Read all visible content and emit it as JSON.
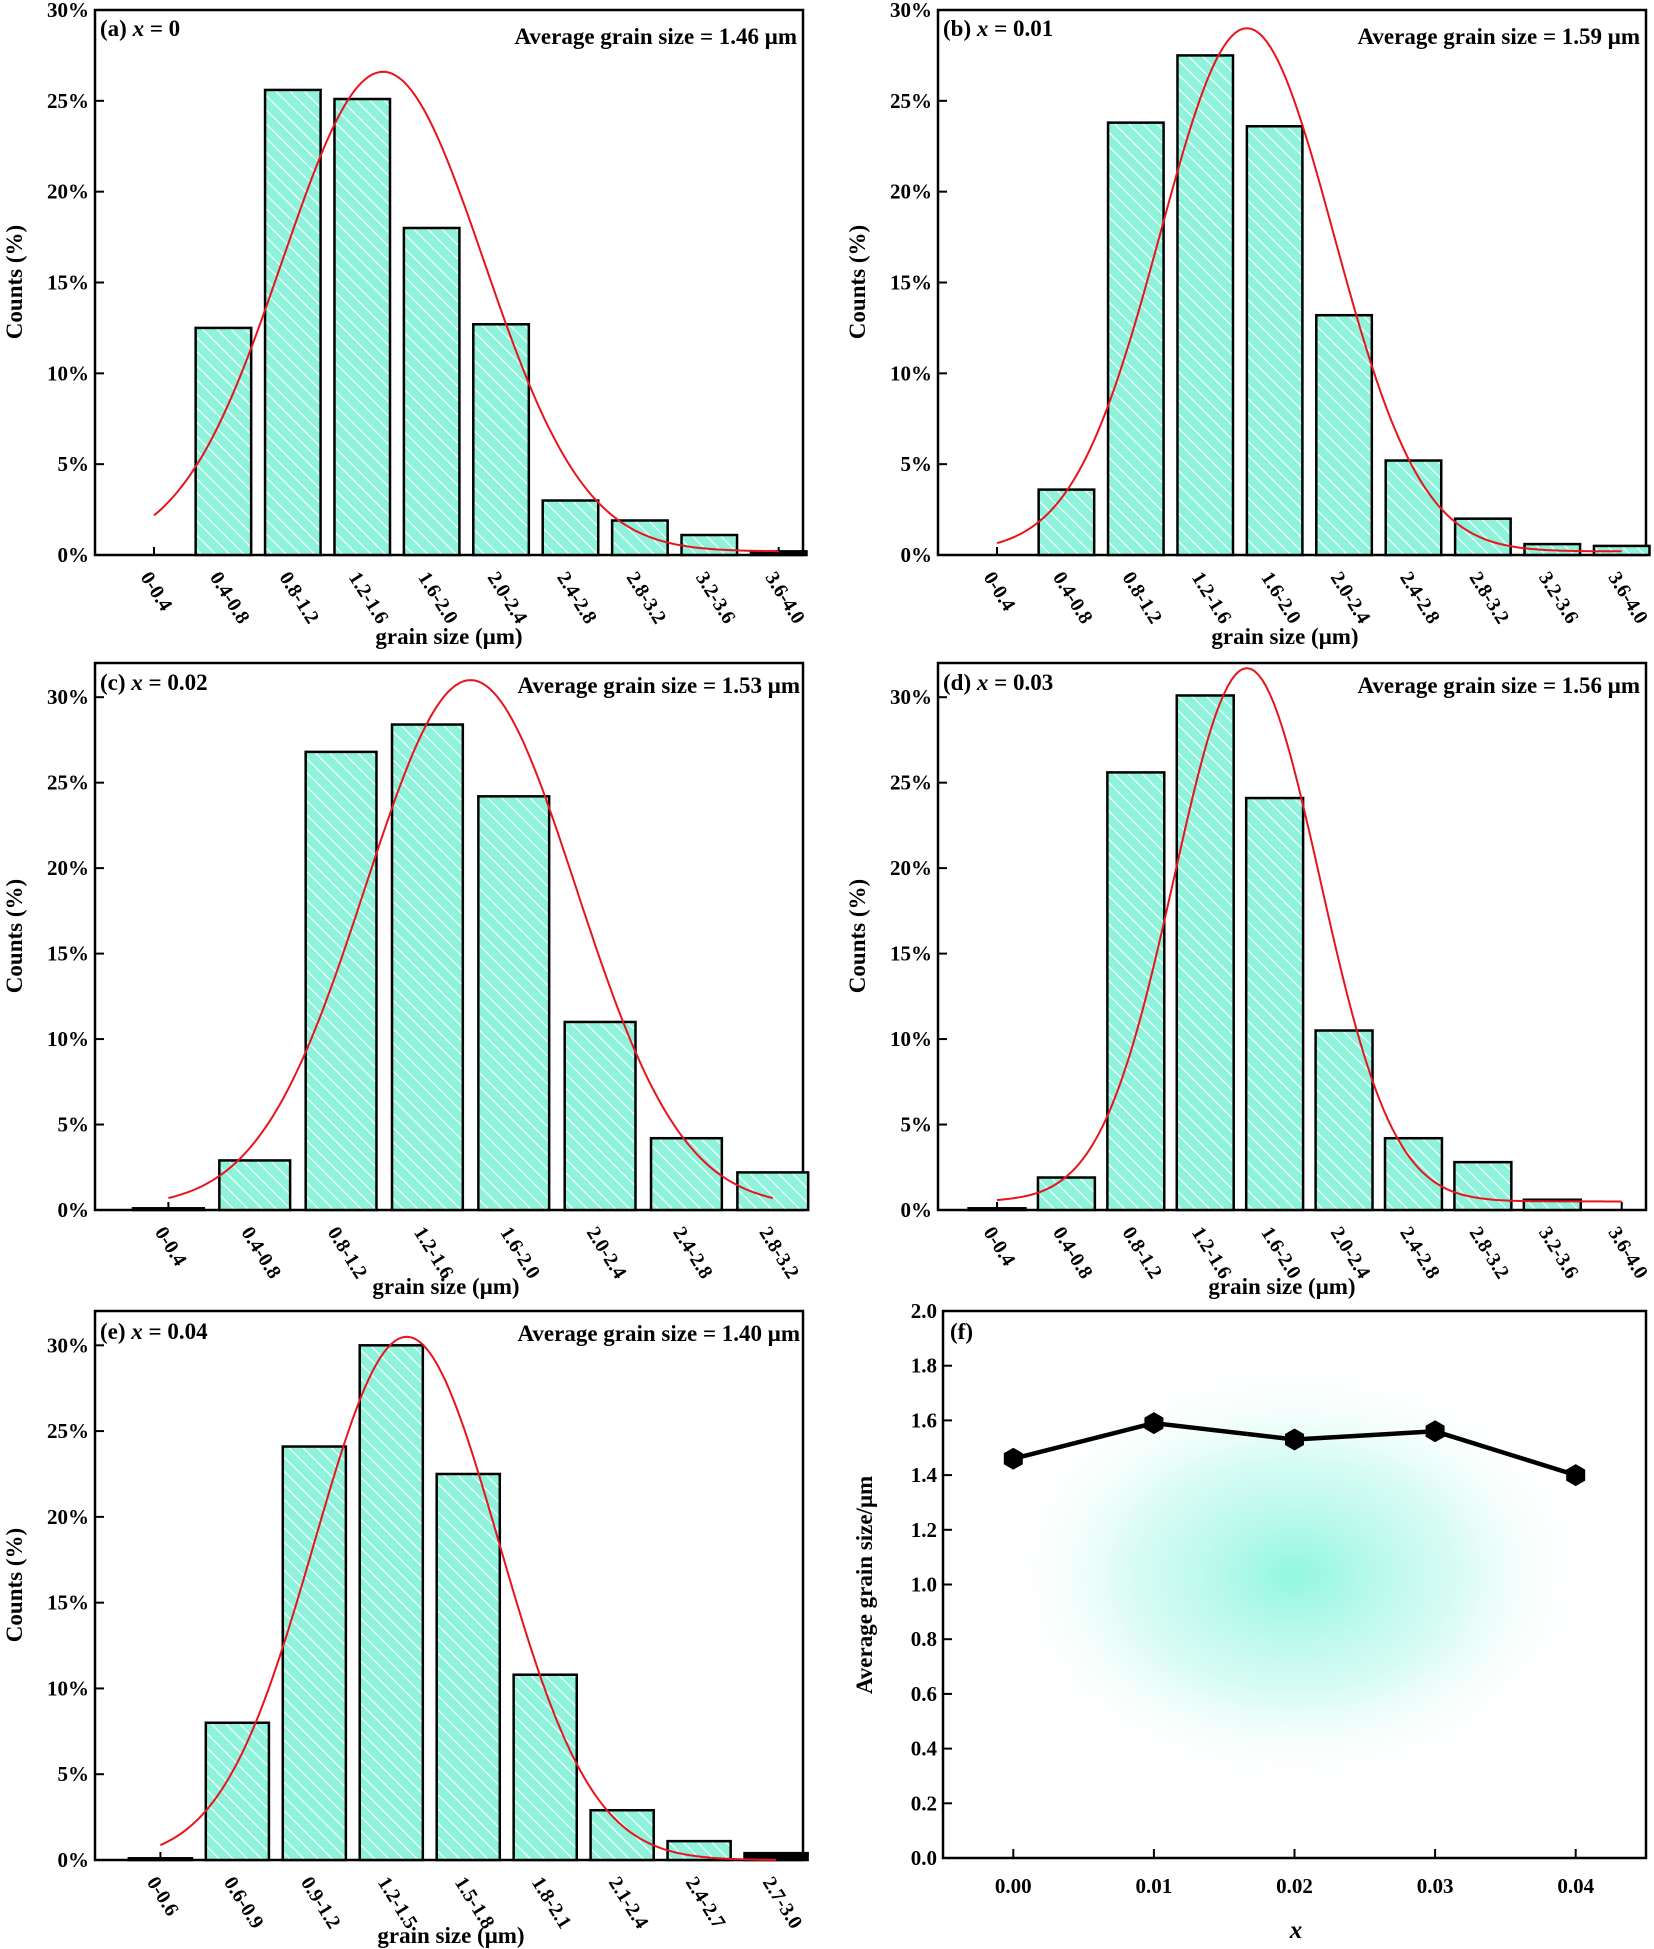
{
  "colors": {
    "bar_fill": "#8ff3dc",
    "hatch": "#ffffff",
    "fit_line": "#e8141c",
    "axis": "#000000",
    "glow": "#7ef5dc"
  },
  "chart_data": [
    {
      "panel": "a",
      "type": "bar",
      "label": "(a)",
      "x_symbol": "x",
      "x_value": "= 0",
      "annotation": "Average grain size = 1.46 μm",
      "xlabel": "grain size (μm)",
      "ylabel": "Counts (%)",
      "categories": [
        "0-0.4",
        "0.4-0.8",
        "0.8-1.2",
        "1.2-1.6",
        "1.6-2.0",
        "2.0-2.4",
        "2.4-2.8",
        "2.8-3.2",
        "3.2-3.6",
        "3.6-4.0"
      ],
      "values": [
        0,
        12.5,
        25.6,
        25.1,
        18.0,
        12.7,
        3.0,
        1.9,
        1.1,
        0.2
      ],
      "ylim": [
        0,
        30
      ],
      "yticks": [
        "0%",
        "5%",
        "10%",
        "15%",
        "20%",
        "25%",
        "30%"
      ],
      "fit": {
        "peak": 26.6,
        "center": 3.3,
        "sigma": 1.45,
        "baseline": 0.2
      }
    },
    {
      "panel": "b",
      "type": "bar",
      "label": "(b)",
      "x_symbol": "x",
      "x_value": "= 0.01",
      "annotation": "Average grain size = 1.59 μm",
      "xlabel": "grain size (μm)",
      "ylabel": "Counts (%)",
      "categories": [
        "0-0.4",
        "0.4-0.8",
        "0.8-1.2",
        "1.2-1.6",
        "1.6-2.0",
        "2.0-2.4",
        "2.4-2.8",
        "2.8-3.2",
        "3.2-3.6",
        "3.6-4.0"
      ],
      "values": [
        0,
        3.6,
        23.8,
        27.5,
        23.6,
        13.2,
        5.2,
        2.0,
        0.6,
        0.5
      ],
      "ylim": [
        0,
        30
      ],
      "yticks": [
        "0%",
        "5%",
        "10%",
        "15%",
        "20%",
        "25%",
        "30%"
      ],
      "fit": {
        "peak": 29.0,
        "center": 3.6,
        "sigma": 1.25,
        "baseline": 0.2
      }
    },
    {
      "panel": "c",
      "type": "bar",
      "label": "(c)",
      "x_symbol": "x",
      "x_value": "= 0.02",
      "annotation": "Average grain size = 1.53 μm",
      "xlabel": "grain size (μm)",
      "ylabel": "Counts (%)",
      "categories": [
        "0-0.4",
        "0.4-0.8",
        "0.8-1.2",
        "1.2-1.6",
        "1.6-2.0",
        "2.0-2.4",
        "2.4-2.8",
        "2.8-3.2"
      ],
      "values": [
        0.1,
        2.9,
        26.8,
        28.4,
        24.2,
        11.0,
        4.2,
        2.2
      ],
      "ylim": [
        0,
        32
      ],
      "yticks": [
        "0%",
        "5%",
        "10%",
        "15%",
        "20%",
        "25%",
        "30%"
      ],
      "fit": {
        "peak": 31.0,
        "center": 3.5,
        "sigma": 1.22,
        "baseline": 0.2
      }
    },
    {
      "panel": "d",
      "type": "bar",
      "label": "(d)",
      "x_symbol": "x",
      "x_value": "= 0.03",
      "annotation": "Average grain size = 1.56 μm",
      "xlabel": "grain size (μm)",
      "ylabel": "Counts (%)",
      "categories": [
        "0-0.4",
        "0.4-0.8",
        "0.8-1.2",
        "1.2-1.6",
        "1.6-2.0",
        "2.0-2.4",
        "2.4-2.8",
        "2.8-3.2",
        "3.2-3.6",
        "3.6-4.0"
      ],
      "values": [
        0.1,
        1.9,
        25.6,
        30.1,
        24.1,
        10.5,
        4.2,
        2.8,
        0.6,
        0
      ],
      "ylim": [
        0,
        32
      ],
      "yticks": [
        "0%",
        "5%",
        "10%",
        "15%",
        "20%",
        "25%",
        "30%"
      ],
      "fit": {
        "peak": 31.7,
        "center": 3.6,
        "sigma": 1.05,
        "baseline": 0.5
      }
    },
    {
      "panel": "e",
      "type": "bar",
      "label": "(e)",
      "x_symbol": "x",
      "x_value": "= 0.04",
      "annotation": "Average grain size = 1.40 μm",
      "xlabel": "grain size (μm)",
      "ylabel": "Counts (%)",
      "categories": [
        "0-0.6",
        "0.6-0.9",
        "0.9-1.2",
        "1.2-1.5",
        "1.5-1.8",
        "1.8-2.1",
        "2.1-2.4",
        "2.4-2.7",
        "2.7-3.0"
      ],
      "values": [
        0.1,
        8.0,
        24.1,
        30.0,
        22.5,
        10.8,
        2.9,
        1.1,
        0.4
      ],
      "ylim": [
        0,
        32
      ],
      "yticks": [
        "0%",
        "5%",
        "10%",
        "15%",
        "20%",
        "25%",
        "30%"
      ],
      "fit": {
        "peak": 30.5,
        "center": 3.2,
        "sigma": 1.2,
        "baseline": 0
      }
    },
    {
      "panel": "f",
      "type": "line",
      "label": "(f)",
      "xlabel": "x",
      "ylabel": "Average grain size/μm",
      "x": [
        0.0,
        0.01,
        0.02,
        0.03,
        0.04
      ],
      "xtick_labels": [
        "0.00",
        "0.01",
        "0.02",
        "0.03",
        "0.04"
      ],
      "y": [
        1.46,
        1.59,
        1.53,
        1.56,
        1.4
      ],
      "xlim": [
        -0.005,
        0.045
      ],
      "ylim": [
        0,
        2.0
      ],
      "yticks": [
        "0.0",
        "0.2",
        "0.4",
        "0.6",
        "0.8",
        "1.0",
        "1.2",
        "1.4",
        "1.6",
        "1.8",
        "2.0"
      ]
    }
  ]
}
